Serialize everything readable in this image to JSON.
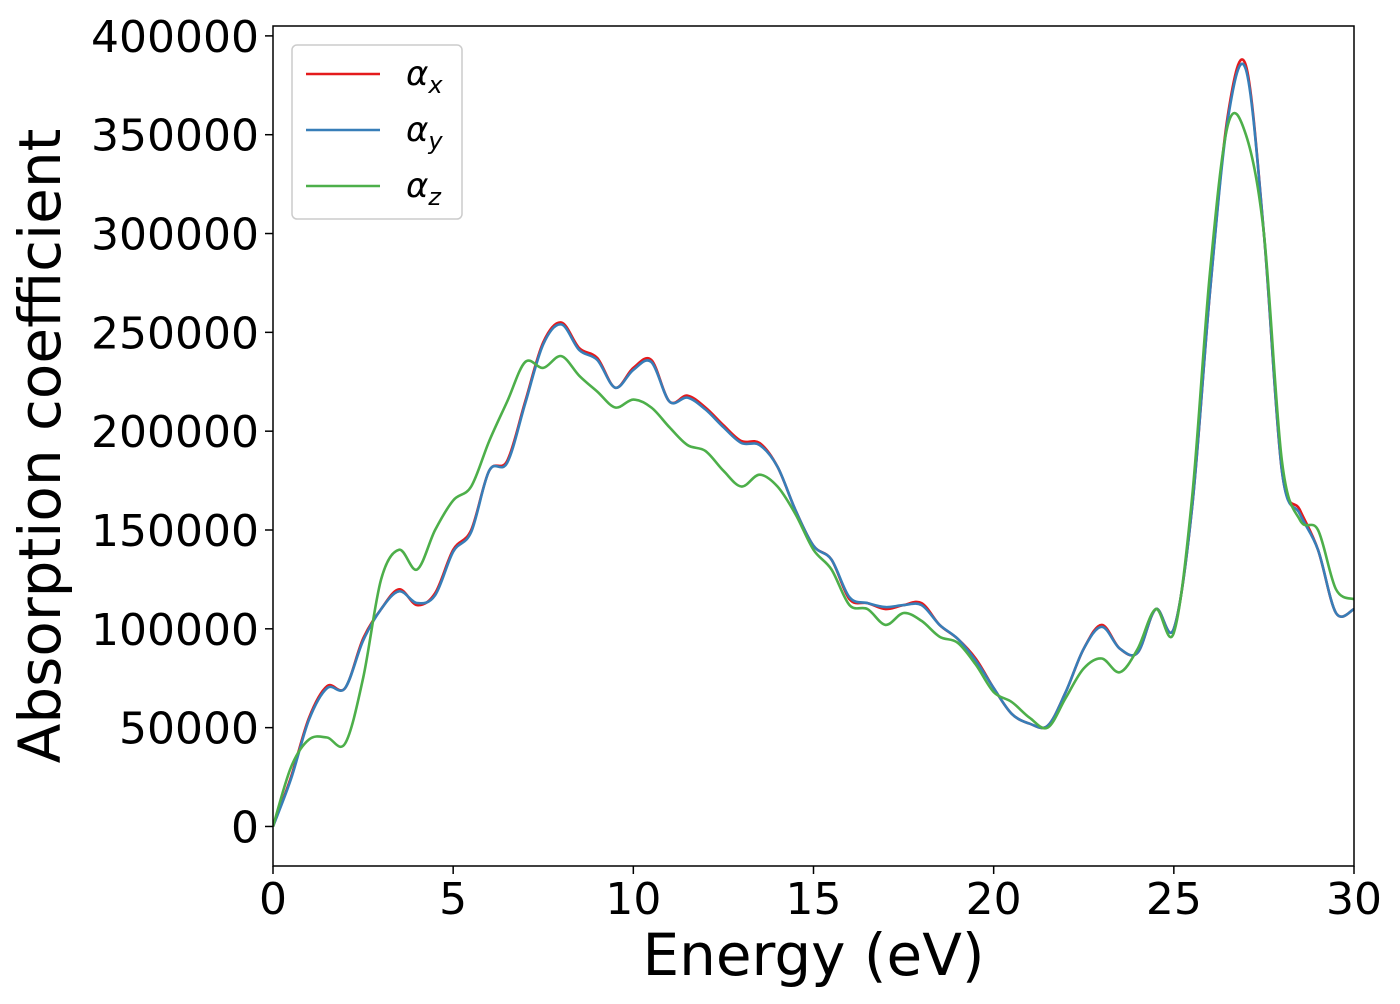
{
  "chart_data": {
    "type": "line",
    "title": "",
    "xlabel": "Energy (eV)",
    "ylabel": "Absorption coefficient",
    "xlim": [
      0,
      30
    ],
    "ylim": [
      -20000,
      405000
    ],
    "x_ticks": [
      0,
      5,
      10,
      15,
      20,
      25,
      30
    ],
    "x_tick_labels": [
      "0",
      "5",
      "10",
      "15",
      "20",
      "25",
      "30"
    ],
    "y_ticks": [
      0,
      50000,
      100000,
      150000,
      200000,
      250000,
      300000,
      350000,
      400000
    ],
    "y_tick_labels": [
      "0",
      "50000",
      "100000",
      "150000",
      "200000",
      "250000",
      "300000",
      "350000",
      "400000"
    ],
    "grid": false,
    "legend_position": "top-left",
    "series": [
      {
        "name": "αx",
        "name_base": "α",
        "name_sub": "x",
        "color": "#e41a1c",
        "x": [
          0,
          0.5,
          1,
          1.5,
          2,
          2.5,
          3,
          3.5,
          4,
          4.5,
          5,
          5.5,
          6,
          6.5,
          7,
          7.5,
          8,
          8.5,
          9,
          9.5,
          10,
          10.5,
          11,
          11.5,
          12,
          12.5,
          13,
          13.5,
          14,
          14.5,
          15,
          15.5,
          16,
          16.5,
          17,
          17.5,
          18,
          18.5,
          19,
          19.5,
          20,
          20.5,
          21,
          21.5,
          22,
          22.5,
          23,
          23.5,
          24,
          24.5,
          25,
          25.5,
          26,
          26.5,
          27,
          27.5,
          28,
          28.5,
          29,
          29.5,
          30
        ],
        "y": [
          0,
          25000,
          55000,
          71000,
          70000,
          95000,
          110000,
          120000,
          112000,
          118000,
          140000,
          150000,
          180000,
          185000,
          215000,
          245000,
          255000,
          242000,
          237000,
          222000,
          232000,
          236000,
          215000,
          218000,
          212000,
          203000,
          195000,
          194000,
          182000,
          160000,
          142000,
          135000,
          115000,
          113000,
          110000,
          112000,
          113000,
          102000,
          95000,
          85000,
          70000,
          57000,
          52000,
          51000,
          68000,
          90000,
          102000,
          90000,
          88000,
          110000,
          100000,
          160000,
          270000,
          360000,
          385000,
          300000,
          180000,
          160000,
          140000,
          108000,
          110000
        ]
      },
      {
        "name": "αy",
        "name_base": "α",
        "name_sub": "y",
        "color": "#377eb8",
        "x": [
          0,
          0.5,
          1,
          1.5,
          2,
          2.5,
          3,
          3.5,
          4,
          4.5,
          5,
          5.5,
          6,
          6.5,
          7,
          7.5,
          8,
          8.5,
          9,
          9.5,
          10,
          10.5,
          11,
          11.5,
          12,
          12.5,
          13,
          13.5,
          14,
          14.5,
          15,
          15.5,
          16,
          16.5,
          17,
          17.5,
          18,
          18.5,
          19,
          19.5,
          20,
          20.5,
          21,
          21.5,
          22,
          22.5,
          23,
          23.5,
          24,
          24.5,
          25,
          25.5,
          26,
          26.5,
          27,
          27.5,
          28,
          28.5,
          29,
          29.5,
          30
        ],
        "y": [
          0,
          24000,
          54000,
          70000,
          70000,
          94000,
          110000,
          119000,
          113000,
          117000,
          139000,
          149000,
          180000,
          184000,
          214000,
          244000,
          254000,
          241000,
          236000,
          222000,
          231000,
          235000,
          215000,
          217000,
          211000,
          202000,
          194000,
          193000,
          182000,
          160000,
          142000,
          135000,
          116000,
          113000,
          111000,
          112000,
          112000,
          102000,
          95000,
          84000,
          70000,
          57000,
          52000,
          51000,
          68000,
          90000,
          101000,
          90000,
          88000,
          110000,
          100000,
          160000,
          270000,
          358000,
          383000,
          300000,
          180000,
          158000,
          140000,
          108000,
          110000
        ]
      },
      {
        "name": "αz",
        "name_base": "α",
        "name_sub": "z",
        "color": "#4daf4a",
        "x": [
          0,
          0.5,
          1,
          1.5,
          2,
          2.5,
          3,
          3.5,
          4,
          4.5,
          5,
          5.5,
          6,
          6.5,
          7,
          7.5,
          8,
          8.5,
          9,
          9.5,
          10,
          10.5,
          11,
          11.5,
          12,
          12.5,
          13,
          13.5,
          14,
          14.5,
          15,
          15.5,
          16,
          16.5,
          17,
          17.5,
          18,
          18.5,
          19,
          19.5,
          20,
          20.5,
          21,
          21.5,
          22,
          22.5,
          23,
          23.5,
          24,
          24.5,
          25,
          25.5,
          26,
          26.5,
          27,
          27.5,
          28,
          28.5,
          29,
          29.5,
          30
        ],
        "y": [
          0,
          30000,
          44000,
          45000,
          42000,
          75000,
          125000,
          140000,
          130000,
          150000,
          165000,
          172000,
          195000,
          215000,
          235000,
          232000,
          238000,
          228000,
          220000,
          212000,
          216000,
          212000,
          202000,
          193000,
          190000,
          180000,
          172000,
          178000,
          172000,
          158000,
          140000,
          130000,
          112000,
          110000,
          102000,
          108000,
          104000,
          96000,
          93000,
          82000,
          68000,
          63000,
          55000,
          50000,
          65000,
          80000,
          85000,
          78000,
          90000,
          110000,
          98000,
          165000,
          280000,
          355000,
          350000,
          300000,
          185000,
          155000,
          150000,
          120000,
          115000
        ]
      }
    ]
  }
}
